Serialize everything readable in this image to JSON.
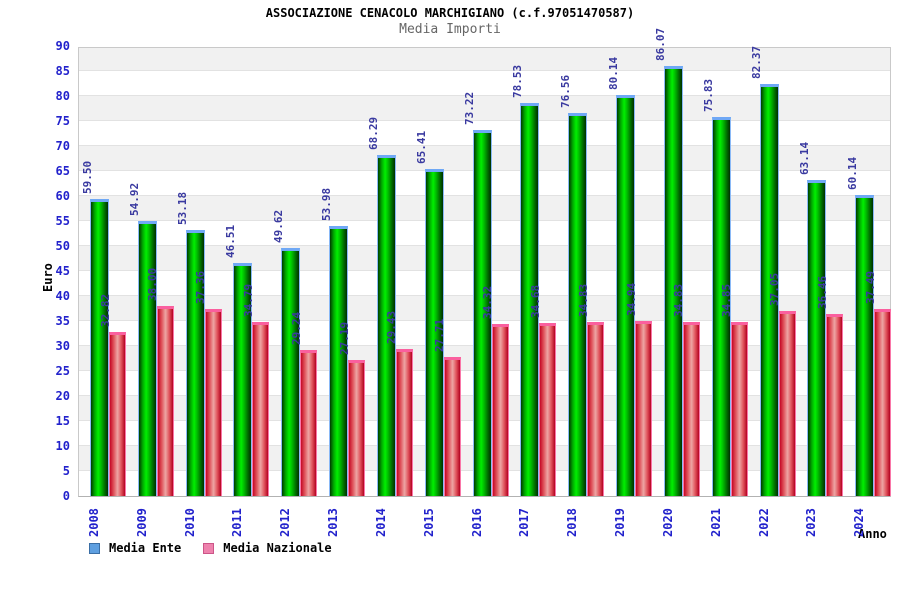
{
  "header": {
    "title": "ASSOCIAZIONE CENACOLO MARCHIGIANO (c.f.97051470587)",
    "subtitle": "Media Importi"
  },
  "legend": [
    {
      "label": "Media Ente",
      "swatch_color": "#5e9fe0"
    },
    {
      "label": "Media Nazionale",
      "swatch_color": "#ee82ad"
    }
  ],
  "colors": {
    "ente_bar_green": "#00cc00",
    "ente_bar_cap": "#6fa8f5",
    "nazionale_bar_red": "#dd4450",
    "nazionale_bar_cap": "#fa5f9e",
    "axis_tick_blue": "#2222cc",
    "value_label_blue": "#3a3aa0",
    "band_gray": "#f1f1f1"
  },
  "chart_data": {
    "type": "bar",
    "title": "ASSOCIAZIONE CENACOLO MARCHIGIANO (c.f.97051470587)",
    "subtitle": "Media Importi",
    "xlabel": "Anno",
    "ylabel": "Euro",
    "ylim": [
      0,
      90
    ],
    "ytick_step": 5,
    "y_ticks": [
      0,
      5,
      10,
      15,
      20,
      25,
      30,
      35,
      40,
      45,
      50,
      55,
      60,
      65,
      70,
      75,
      80,
      85,
      90
    ],
    "grid": "horizontal alternating bands, gridline each 5 units",
    "legend_position": "bottom-left",
    "categories": [
      "2008",
      "2009",
      "2010",
      "2011",
      "2012",
      "2013",
      "2014",
      "2015",
      "2016",
      "2017",
      "2018",
      "2019",
      "2020",
      "2021",
      "2022",
      "2023",
      "2024"
    ],
    "series": [
      {
        "name": "Media Ente",
        "values": [
          59.5,
          54.92,
          53.18,
          46.51,
          49.62,
          53.98,
          68.29,
          65.41,
          73.22,
          78.53,
          76.56,
          80.14,
          86.07,
          75.83,
          82.37,
          63.14,
          60.14
        ],
        "labels": [
          "59.50",
          "54.92",
          "53.18",
          "46.51",
          "49.62",
          "53.98",
          "68.29",
          "65.41",
          "73.22",
          "78.53",
          "76.56",
          "80.14",
          "86.07",
          "75.83",
          "82.37",
          "63.14",
          "60.14"
        ]
      },
      {
        "name": "Media Nazionale",
        "values": [
          32.82,
          38.0,
          37.36,
          34.79,
          29.24,
          27.19,
          29.43,
          27.71,
          34.32,
          34.68,
          34.83,
          34.94,
          34.83,
          34.85,
          37.05,
          36.46,
          37.49
        ],
        "labels": [
          "32.82",
          "38.00",
          "37.36",
          "34.79",
          "29.24",
          "27.19",
          "29.43",
          "27.71",
          "34.32",
          "34.68",
          "34.83",
          "34.94",
          "34.83",
          "34.85",
          "37.05",
          "36.46",
          "37.49"
        ]
      }
    ]
  }
}
